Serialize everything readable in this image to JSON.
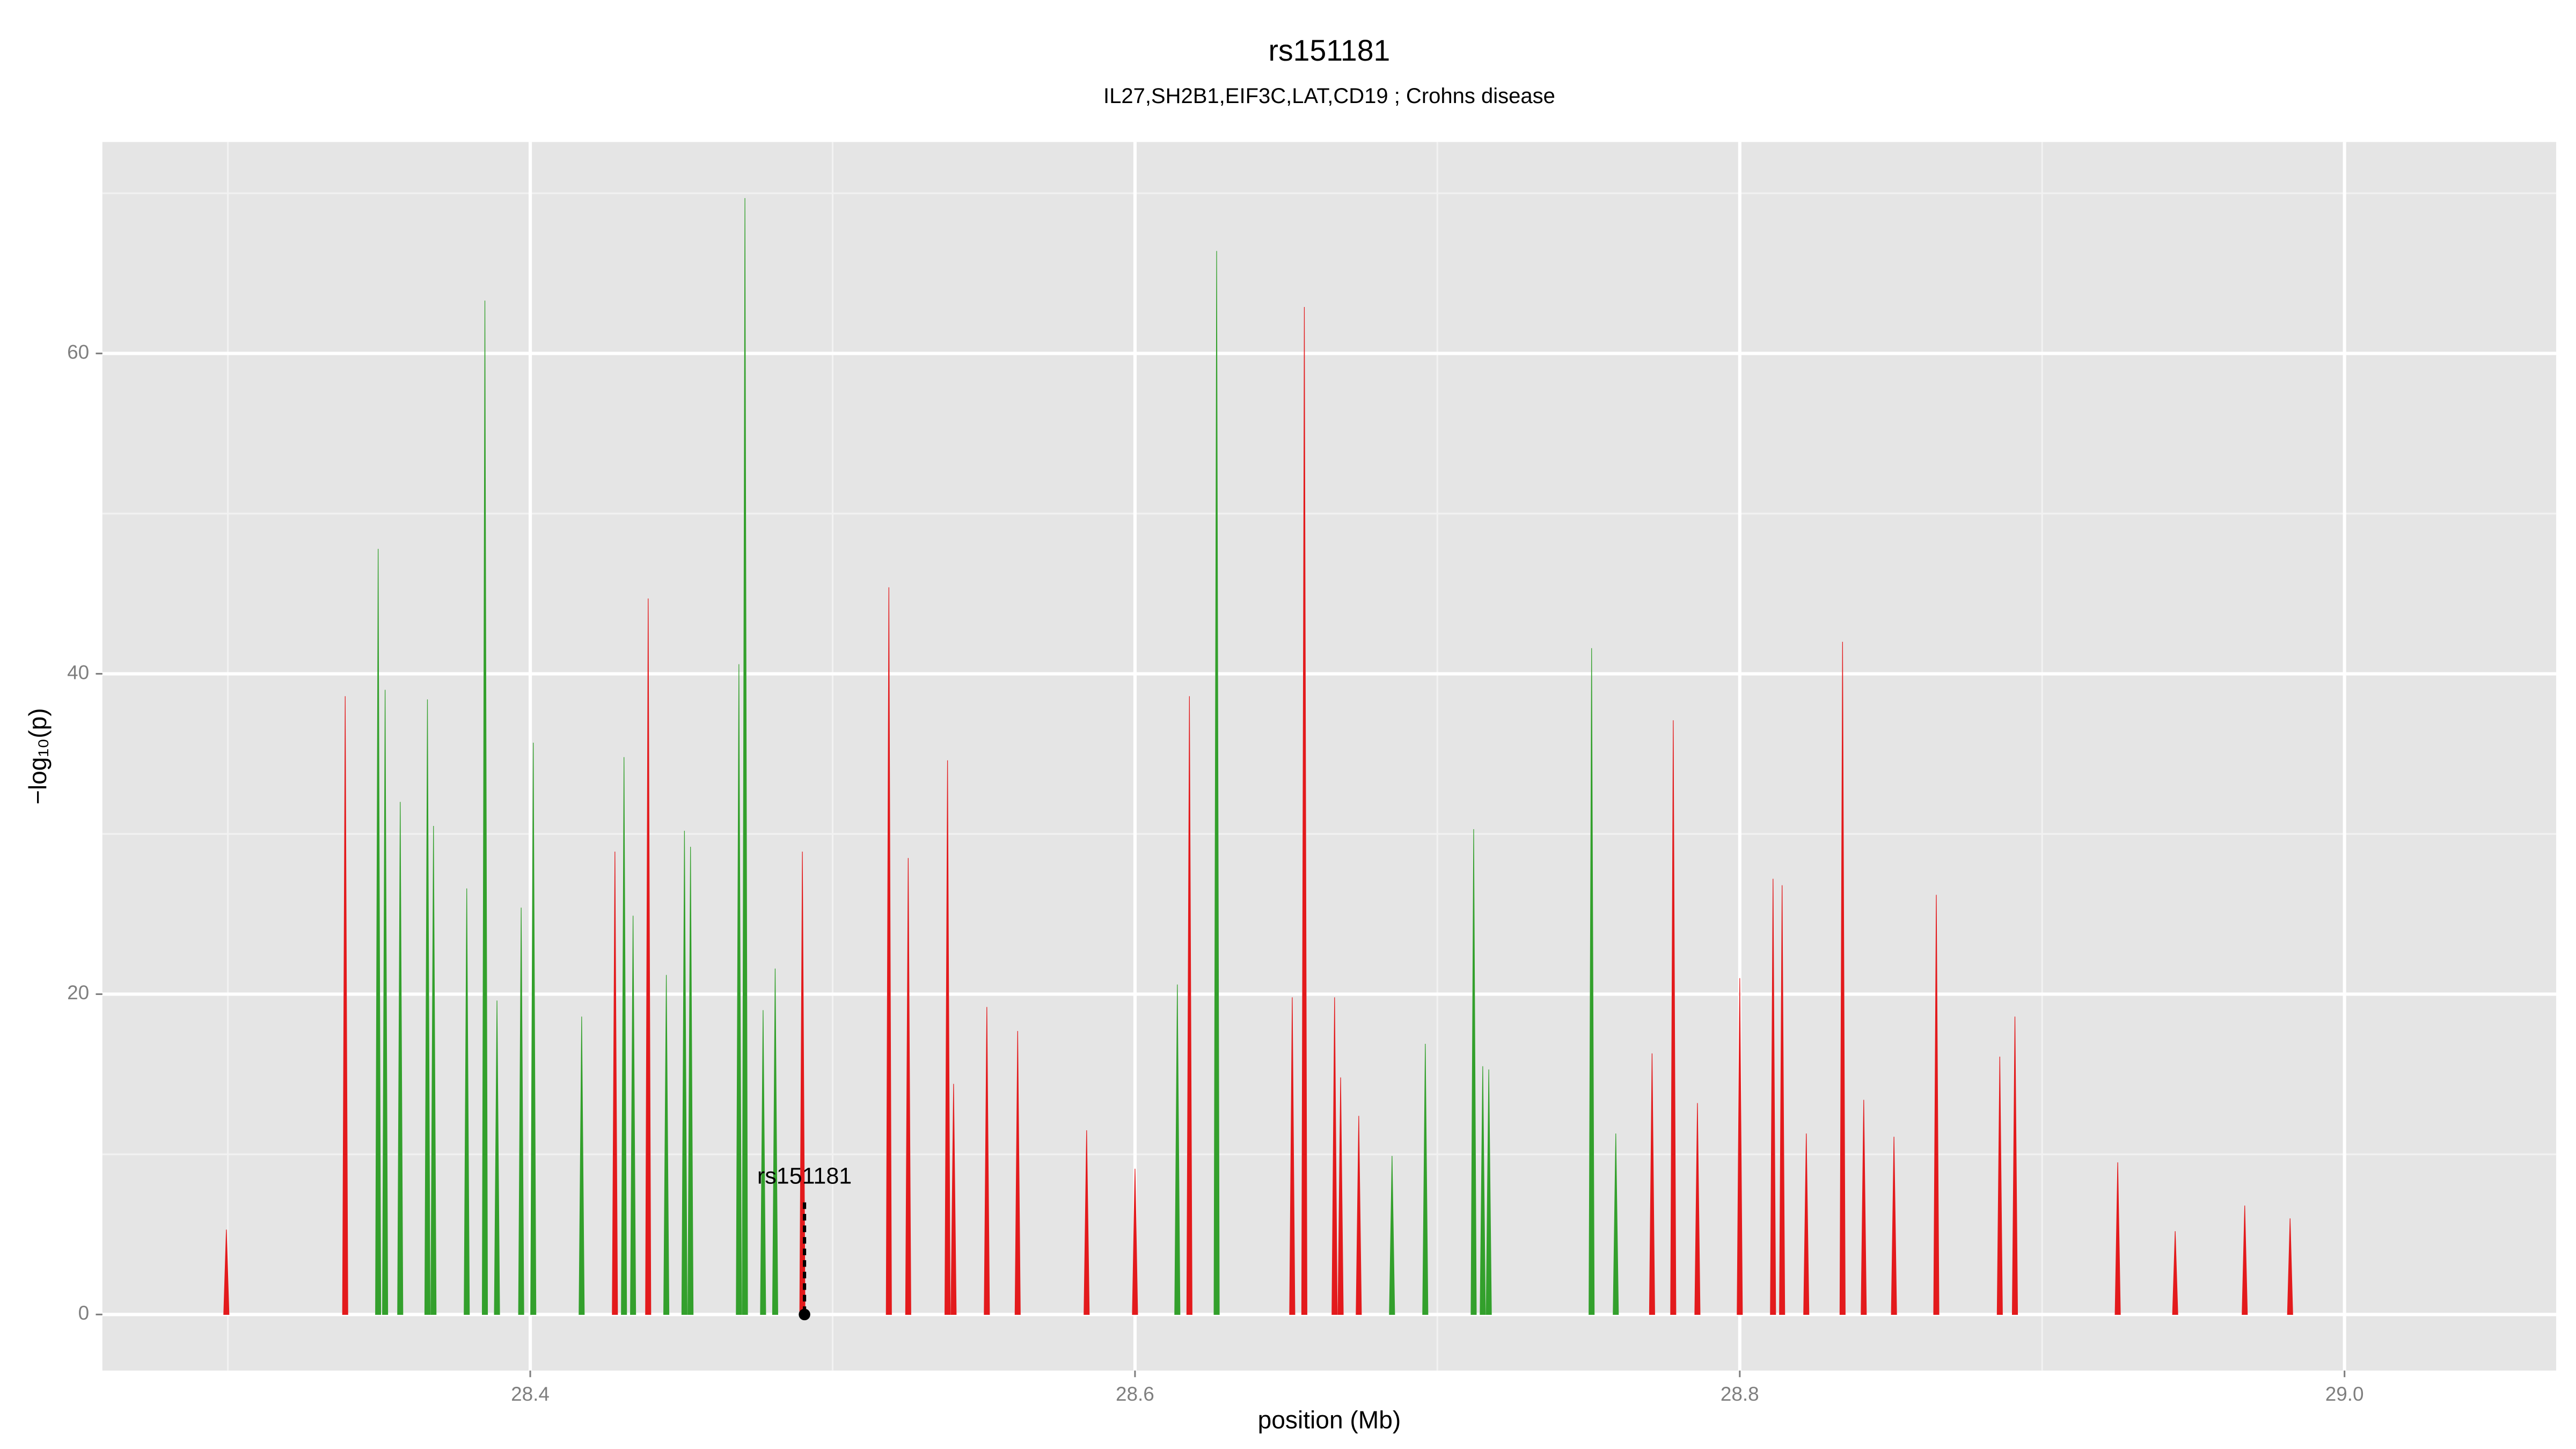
{
  "chart_data": {
    "type": "spike",
    "title": "rs151181",
    "subtitle": "IL27,SH2B1,EIF3C,LAT,CD19 ; Crohns disease",
    "x_label": "position (Mb)",
    "y_label": "−log₁₀(p)",
    "xlim": [
      28.2585,
      29.07
    ],
    "ylim": [
      -3.5,
      73.2
    ],
    "xticks": [
      28.4,
      28.6,
      28.8,
      {
        "value": 29.0,
        "label": "29.0"
      }
    ],
    "yticks": [
      0,
      20,
      40,
      60
    ],
    "x_minor_grid": [
      28.3,
      28.5,
      28.7,
      28.9
    ],
    "y_minor_grid": [
      10,
      30,
      50,
      70
    ],
    "grid": true,
    "series": [
      {
        "color": "#33a02c",
        "x": [
          28.3497,
          28.352,
          28.357,
          28.366,
          28.368,
          28.379,
          28.385,
          28.389,
          28.397,
          28.401,
          28.417,
          28.431,
          28.434,
          28.445,
          28.451,
          28.453,
          28.469,
          28.471,
          28.477,
          28.481,
          28.614,
          28.627,
          28.685,
          28.696,
          28.712,
          28.715,
          28.717,
          28.751,
          28.759
        ],
        "values": [
          47.8,
          39,
          32,
          38.4,
          30.5,
          26.6,
          63.3,
          19.6,
          25.4,
          35.7,
          18.6,
          34.8,
          24.9,
          21.2,
          30.2,
          29.2,
          40.6,
          69.7,
          19,
          21.6,
          20.6,
          66.4,
          9.9,
          16.9,
          30.3,
          15.5,
          15.3,
          41.6,
          11.3
        ]
      },
      {
        "color": "#e31a1c",
        "x": [
          28.2995,
          28.3388,
          28.428,
          28.439,
          28.49,
          28.5186,
          28.525,
          28.538,
          28.54,
          28.551,
          28.5612,
          28.584,
          28.6,
          28.618,
          28.652,
          28.656,
          28.666,
          28.668,
          28.674,
          28.771,
          28.778,
          28.786,
          28.8,
          28.811,
          28.814,
          28.822,
          28.834,
          28.841,
          28.851,
          28.865,
          28.886,
          28.891,
          28.925,
          28.944,
          28.967,
          28.982
        ],
        "values": [
          5.3,
          38.6,
          28.9,
          44.7,
          28.9,
          45.4,
          28.5,
          34.6,
          14.4,
          19.2,
          17.7,
          11.5,
          9.1,
          38.6,
          19.8,
          62.9,
          19.8,
          14.8,
          12.4,
          16.3,
          37.1,
          13.2,
          21,
          27.2,
          26.8,
          11.3,
          42,
          13.4,
          11.1,
          26.2,
          16.1,
          18.6,
          9.5,
          5.2,
          6.8,
          6
        ]
      }
    ],
    "annotation": {
      "label": "rs151181",
      "x": 28.4907,
      "y": 7,
      "point_y": 0
    }
  }
}
